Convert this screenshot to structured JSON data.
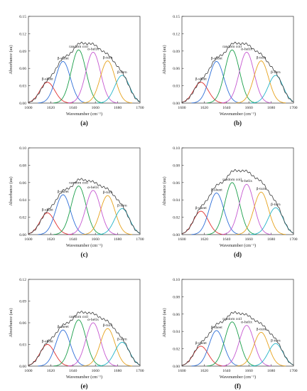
{
  "chart_data": [
    {
      "type": "line",
      "panel_label": "(a)",
      "xlabel": "Wavenumber (cm⁻¹)",
      "ylabel": "Absorbance (au)",
      "xlim": [
        1600,
        1700
      ],
      "ylim": [
        0,
        0.15
      ],
      "xticks": [
        1600,
        1620,
        1640,
        1660,
        1680,
        1700
      ],
      "yticks": [
        0.0,
        0.03,
        0.06,
        0.09,
        0.12,
        0.15
      ],
      "ytick_labels": [
        "0.00",
        "0.03",
        "0.06",
        "0.09",
        "0.12",
        "0.15"
      ],
      "envelope_peak": 0.104,
      "peaks": [
        {
          "name": "β-sheet",
          "center": 1617,
          "height": 0.036,
          "color": "#e03030"
        },
        {
          "name": "β-sheet",
          "center": 1631,
          "height": 0.072,
          "color": "#2e6fd8"
        },
        {
          "name": "random coil",
          "center": 1645,
          "height": 0.092,
          "color": "#1a9e4a"
        },
        {
          "name": "α-helix",
          "center": 1658,
          "height": 0.088,
          "color": "#c558d0"
        },
        {
          "name": "β-turn",
          "center": 1671,
          "height": 0.073,
          "color": "#e6a21c"
        },
        {
          "name": "β-turn",
          "center": 1684,
          "height": 0.048,
          "color": "#22b4c8"
        }
      ]
    },
    {
      "type": "line",
      "panel_label": "(b)",
      "xlabel": "Wavenumber (cm⁻¹)",
      "ylabel": "Absorbance (au)",
      "xlim": [
        1600,
        1700
      ],
      "ylim": [
        0,
        0.15
      ],
      "xticks": [
        1600,
        1620,
        1640,
        1660,
        1680,
        1700
      ],
      "yticks": [
        0.0,
        0.03,
        0.06,
        0.09,
        0.12,
        0.15
      ],
      "ytick_labels": [
        "0.00",
        "0.03",
        "0.06",
        "0.09",
        "0.12",
        "0.15"
      ],
      "envelope_peak": 0.104,
      "peaks": [
        {
          "name": "β-sheet",
          "center": 1617,
          "height": 0.036,
          "color": "#e03030"
        },
        {
          "name": "β-sheet",
          "center": 1631,
          "height": 0.072,
          "color": "#2e6fd8"
        },
        {
          "name": "random coil",
          "center": 1645,
          "height": 0.092,
          "color": "#1a9e4a"
        },
        {
          "name": "α-helix",
          "center": 1658,
          "height": 0.088,
          "color": "#c558d0"
        },
        {
          "name": "β-turn",
          "center": 1671,
          "height": 0.073,
          "color": "#e6a21c"
        },
        {
          "name": "β-turn",
          "center": 1684,
          "height": 0.048,
          "color": "#22b4c8"
        }
      ]
    },
    {
      "type": "line",
      "panel_label": "(c)",
      "xlabel": "Wavenumber (cm⁻¹)",
      "ylabel": "Absorbance (au)",
      "xlim": [
        1600,
        1700
      ],
      "ylim": [
        0,
        0.1
      ],
      "xticks": [
        1600,
        1620,
        1640,
        1660,
        1680,
        1700
      ],
      "yticks": [
        0.0,
        0.02,
        0.04,
        0.06,
        0.08,
        0.1
      ],
      "ytick_labels": [
        "0.00",
        "0.02",
        "0.04",
        "0.06",
        "0.08",
        "0.10"
      ],
      "envelope_peak": 0.064,
      "peaks": [
        {
          "name": "β-sheet",
          "center": 1617,
          "height": 0.025,
          "color": "#e03030"
        },
        {
          "name": "β-sheet",
          "center": 1631,
          "height": 0.046,
          "color": "#2e6fd8"
        },
        {
          "name": "random coil",
          "center": 1645,
          "height": 0.056,
          "color": "#1a9e4a"
        },
        {
          "name": "α-helix",
          "center": 1658,
          "height": 0.051,
          "color": "#c558d0"
        },
        {
          "name": "β-turn",
          "center": 1671,
          "height": 0.045,
          "color": "#e6a21c"
        },
        {
          "name": "β-turn",
          "center": 1684,
          "height": 0.03,
          "color": "#22b4c8"
        }
      ]
    },
    {
      "type": "line",
      "panel_label": "(d)",
      "xlabel": "Wavenumber (cm⁻¹)",
      "ylabel": "Absorbance (au)",
      "xlim": [
        1600,
        1700
      ],
      "ylim": [
        0,
        0.1
      ],
      "xticks": [
        1600,
        1620,
        1640,
        1660,
        1680,
        1700
      ],
      "yticks": [
        0.0,
        0.02,
        0.04,
        0.06,
        0.08,
        0.1
      ],
      "ytick_labels": [
        "0.00",
        "0.02",
        "0.04",
        "0.06",
        "0.08",
        "0.10"
      ],
      "envelope_peak": 0.074,
      "peaks": [
        {
          "name": "β-sheet",
          "center": 1617,
          "height": 0.027,
          "color": "#e03030"
        },
        {
          "name": "β-sheet",
          "center": 1631,
          "height": 0.048,
          "color": "#2e6fd8"
        },
        {
          "name": "random coil",
          "center": 1645,
          "height": 0.06,
          "color": "#1a9e4a"
        },
        {
          "name": "α-helix",
          "center": 1658,
          "height": 0.058,
          "color": "#c558d0"
        },
        {
          "name": "β-turn",
          "center": 1671,
          "height": 0.049,
          "color": "#e6a21c"
        },
        {
          "name": "β-turn",
          "center": 1684,
          "height": 0.031,
          "color": "#22b4c8"
        }
      ]
    },
    {
      "type": "line",
      "panel_label": "(e)",
      "xlabel": "Wavenumber (cm⁻¹)",
      "ylabel": "Absorbance (au)",
      "xlim": [
        1600,
        1700
      ],
      "ylim": [
        0,
        0.12
      ],
      "xticks": [
        1600,
        1620,
        1640,
        1660,
        1680,
        1700
      ],
      "yticks": [
        0.0,
        0.03,
        0.06,
        0.09,
        0.12
      ],
      "ytick_labels": [
        "0.00",
        "0.03",
        "0.06",
        "0.09",
        "0.12"
      ],
      "envelope_peak": 0.075,
      "peaks": [
        {
          "name": "β-sheet",
          "center": 1617,
          "height": 0.03,
          "color": "#e03030"
        },
        {
          "name": "β-sheet",
          "center": 1631,
          "height": 0.05,
          "color": "#2e6fd8"
        },
        {
          "name": "random coil",
          "center": 1645,
          "height": 0.064,
          "color": "#1a9e4a"
        },
        {
          "name": "α-helix",
          "center": 1658,
          "height": 0.06,
          "color": "#c558d0"
        },
        {
          "name": "β-turn",
          "center": 1671,
          "height": 0.052,
          "color": "#e6a21c"
        },
        {
          "name": "β-turn",
          "center": 1684,
          "height": 0.033,
          "color": "#22b4c8"
        }
      ]
    },
    {
      "type": "line",
      "panel_label": "(f)",
      "xlabel": "Wavenumber (cm⁻¹)",
      "ylabel": "Absorbance (au)",
      "xlim": [
        1600,
        1700
      ],
      "ylim": [
        0,
        0.1
      ],
      "xticks": [
        1600,
        1620,
        1640,
        1660,
        1680,
        1700
      ],
      "yticks": [
        0.0,
        0.02,
        0.04,
        0.06,
        0.08,
        0.1
      ],
      "ytick_labels": [
        "0.00",
        "0.02",
        "0.04",
        "0.06",
        "0.08",
        "0.10"
      ],
      "envelope_peak": 0.062,
      "peaks": [
        {
          "name": "β-sheet",
          "center": 1617,
          "height": 0.023,
          "color": "#e03030"
        },
        {
          "name": "β-sheet",
          "center": 1631,
          "height": 0.041,
          "color": "#2e6fd8"
        },
        {
          "name": "random coil",
          "center": 1645,
          "height": 0.051,
          "color": "#1a9e4a"
        },
        {
          "name": "α-helix",
          "center": 1658,
          "height": 0.047,
          "color": "#c558d0"
        },
        {
          "name": "β-turn",
          "center": 1671,
          "height": 0.039,
          "color": "#e6a21c"
        },
        {
          "name": "β-turn",
          "center": 1684,
          "height": 0.026,
          "color": "#22b4c8"
        }
      ]
    }
  ]
}
